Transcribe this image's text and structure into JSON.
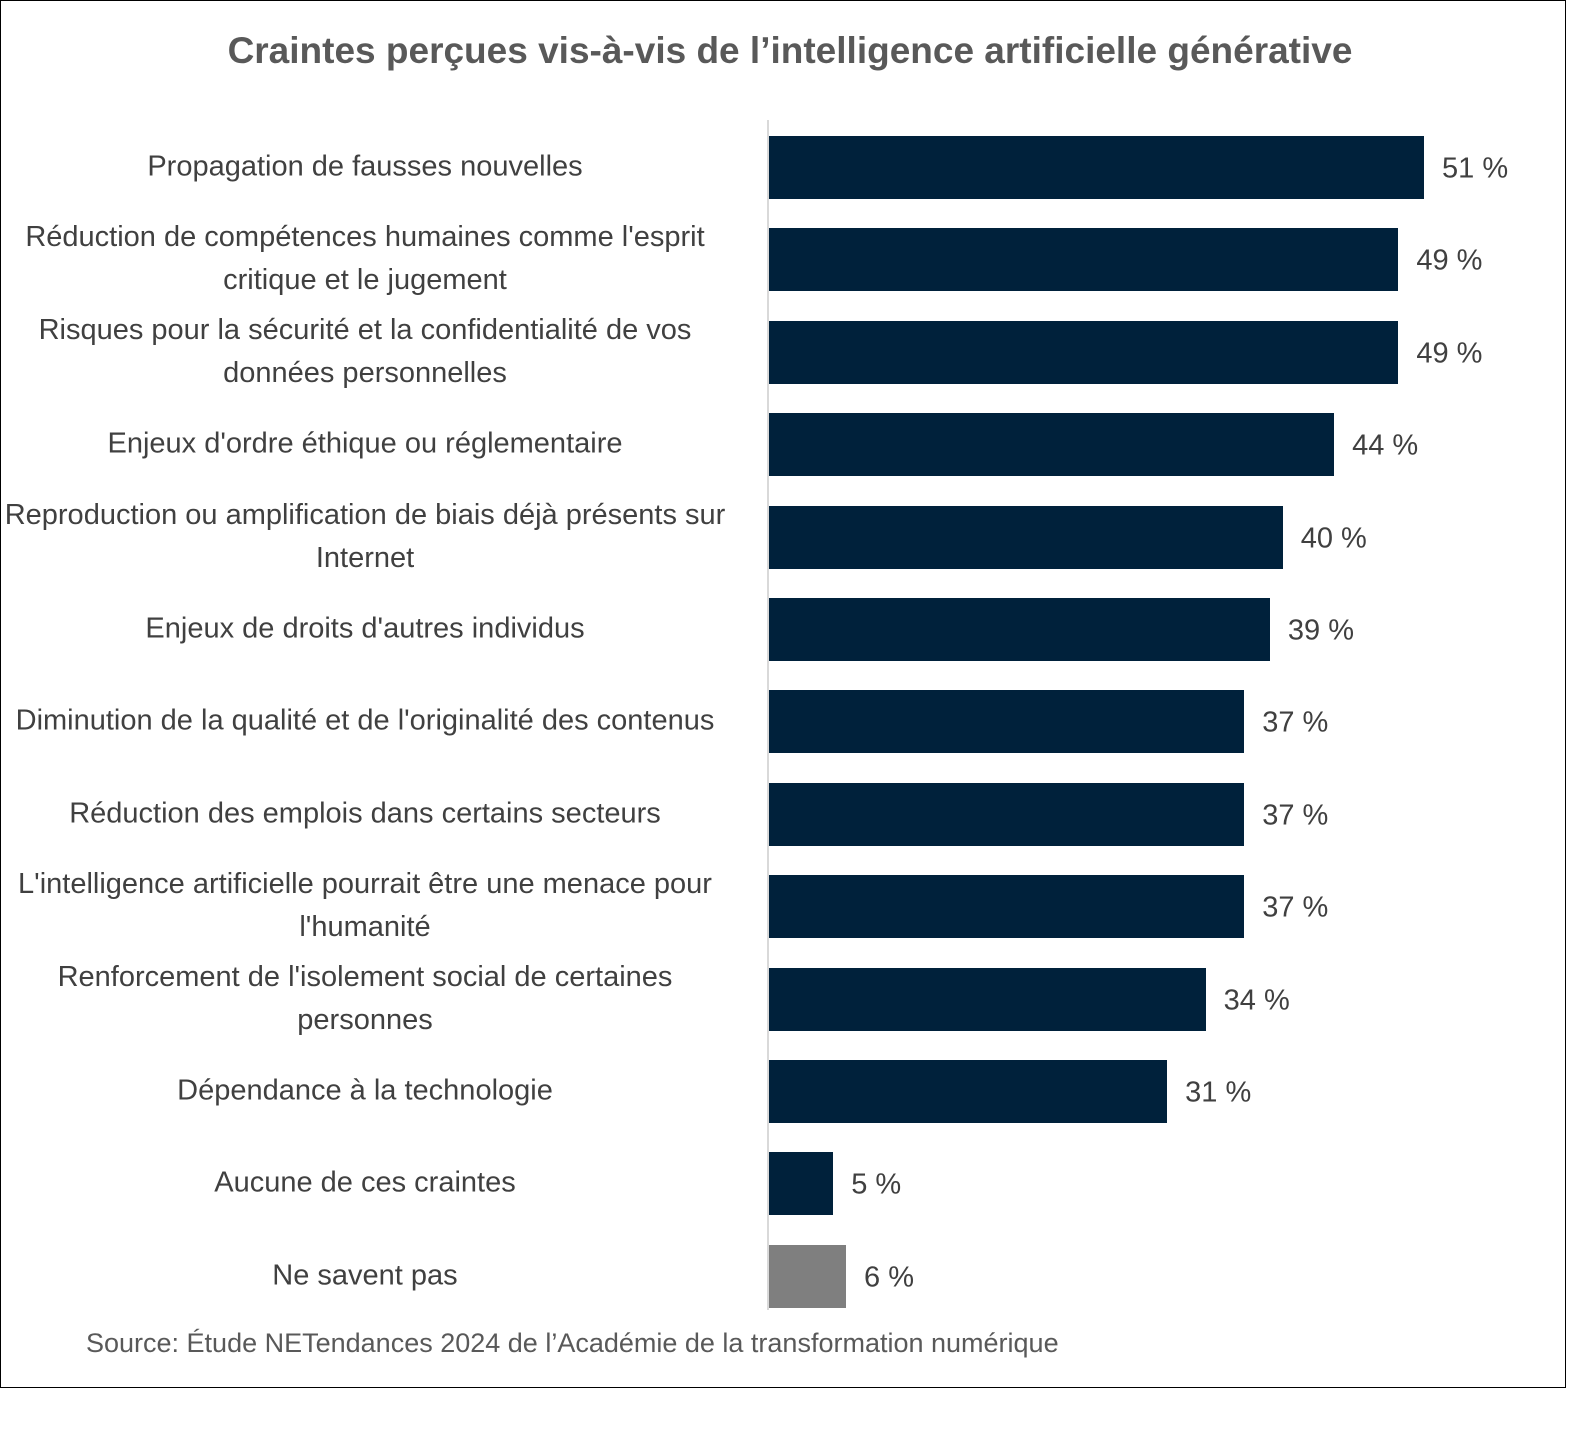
{
  "chart_data": {
    "type": "bar",
    "orientation": "horizontal",
    "title": "Craintes perçues vis-à-vis de l’intelligence artificielle générative",
    "categories": [
      "Propagation de fausses nouvelles",
      "Réduction de compétences humaines comme l'esprit critique et le jugement",
      "Risques pour la sécurité et la confidentialité de vos données personnelles",
      "Enjeux d'ordre éthique ou réglementaire",
      "Reproduction ou amplification de biais déjà présents sur Internet",
      "Enjeux de droits d'autres individus",
      "Diminution de la qualité et de l'originalité des contenus",
      "Réduction des emplois dans certains secteurs",
      "L'intelligence artificielle pourrait être une menace pour l'humanité",
      "Renforcement de l'isolement social de certaines personnes",
      "Dépendance à la technologie",
      "Aucune de ces craintes",
      "Ne savent pas"
    ],
    "values": [
      51,
      49,
      49,
      44,
      40,
      39,
      37,
      37,
      37,
      34,
      31,
      5,
      6
    ],
    "value_labels": [
      "51 %",
      "49 %",
      "49 %",
      "44 %",
      "40 %",
      "39 %",
      "37 %",
      "37 %",
      "37 %",
      "34 %",
      "31 %",
      "5 %",
      "6 %"
    ],
    "colors": [
      "#00213b",
      "#00213b",
      "#00213b",
      "#00213b",
      "#00213b",
      "#00213b",
      "#00213b",
      "#00213b",
      "#00213b",
      "#00213b",
      "#00213b",
      "#00213b",
      "#7f7f7f"
    ],
    "xlim": [
      0,
      51
    ],
    "grid": false,
    "source": "Source: Étude NETendances 2024 de l’Académie de la transformation numérique"
  }
}
